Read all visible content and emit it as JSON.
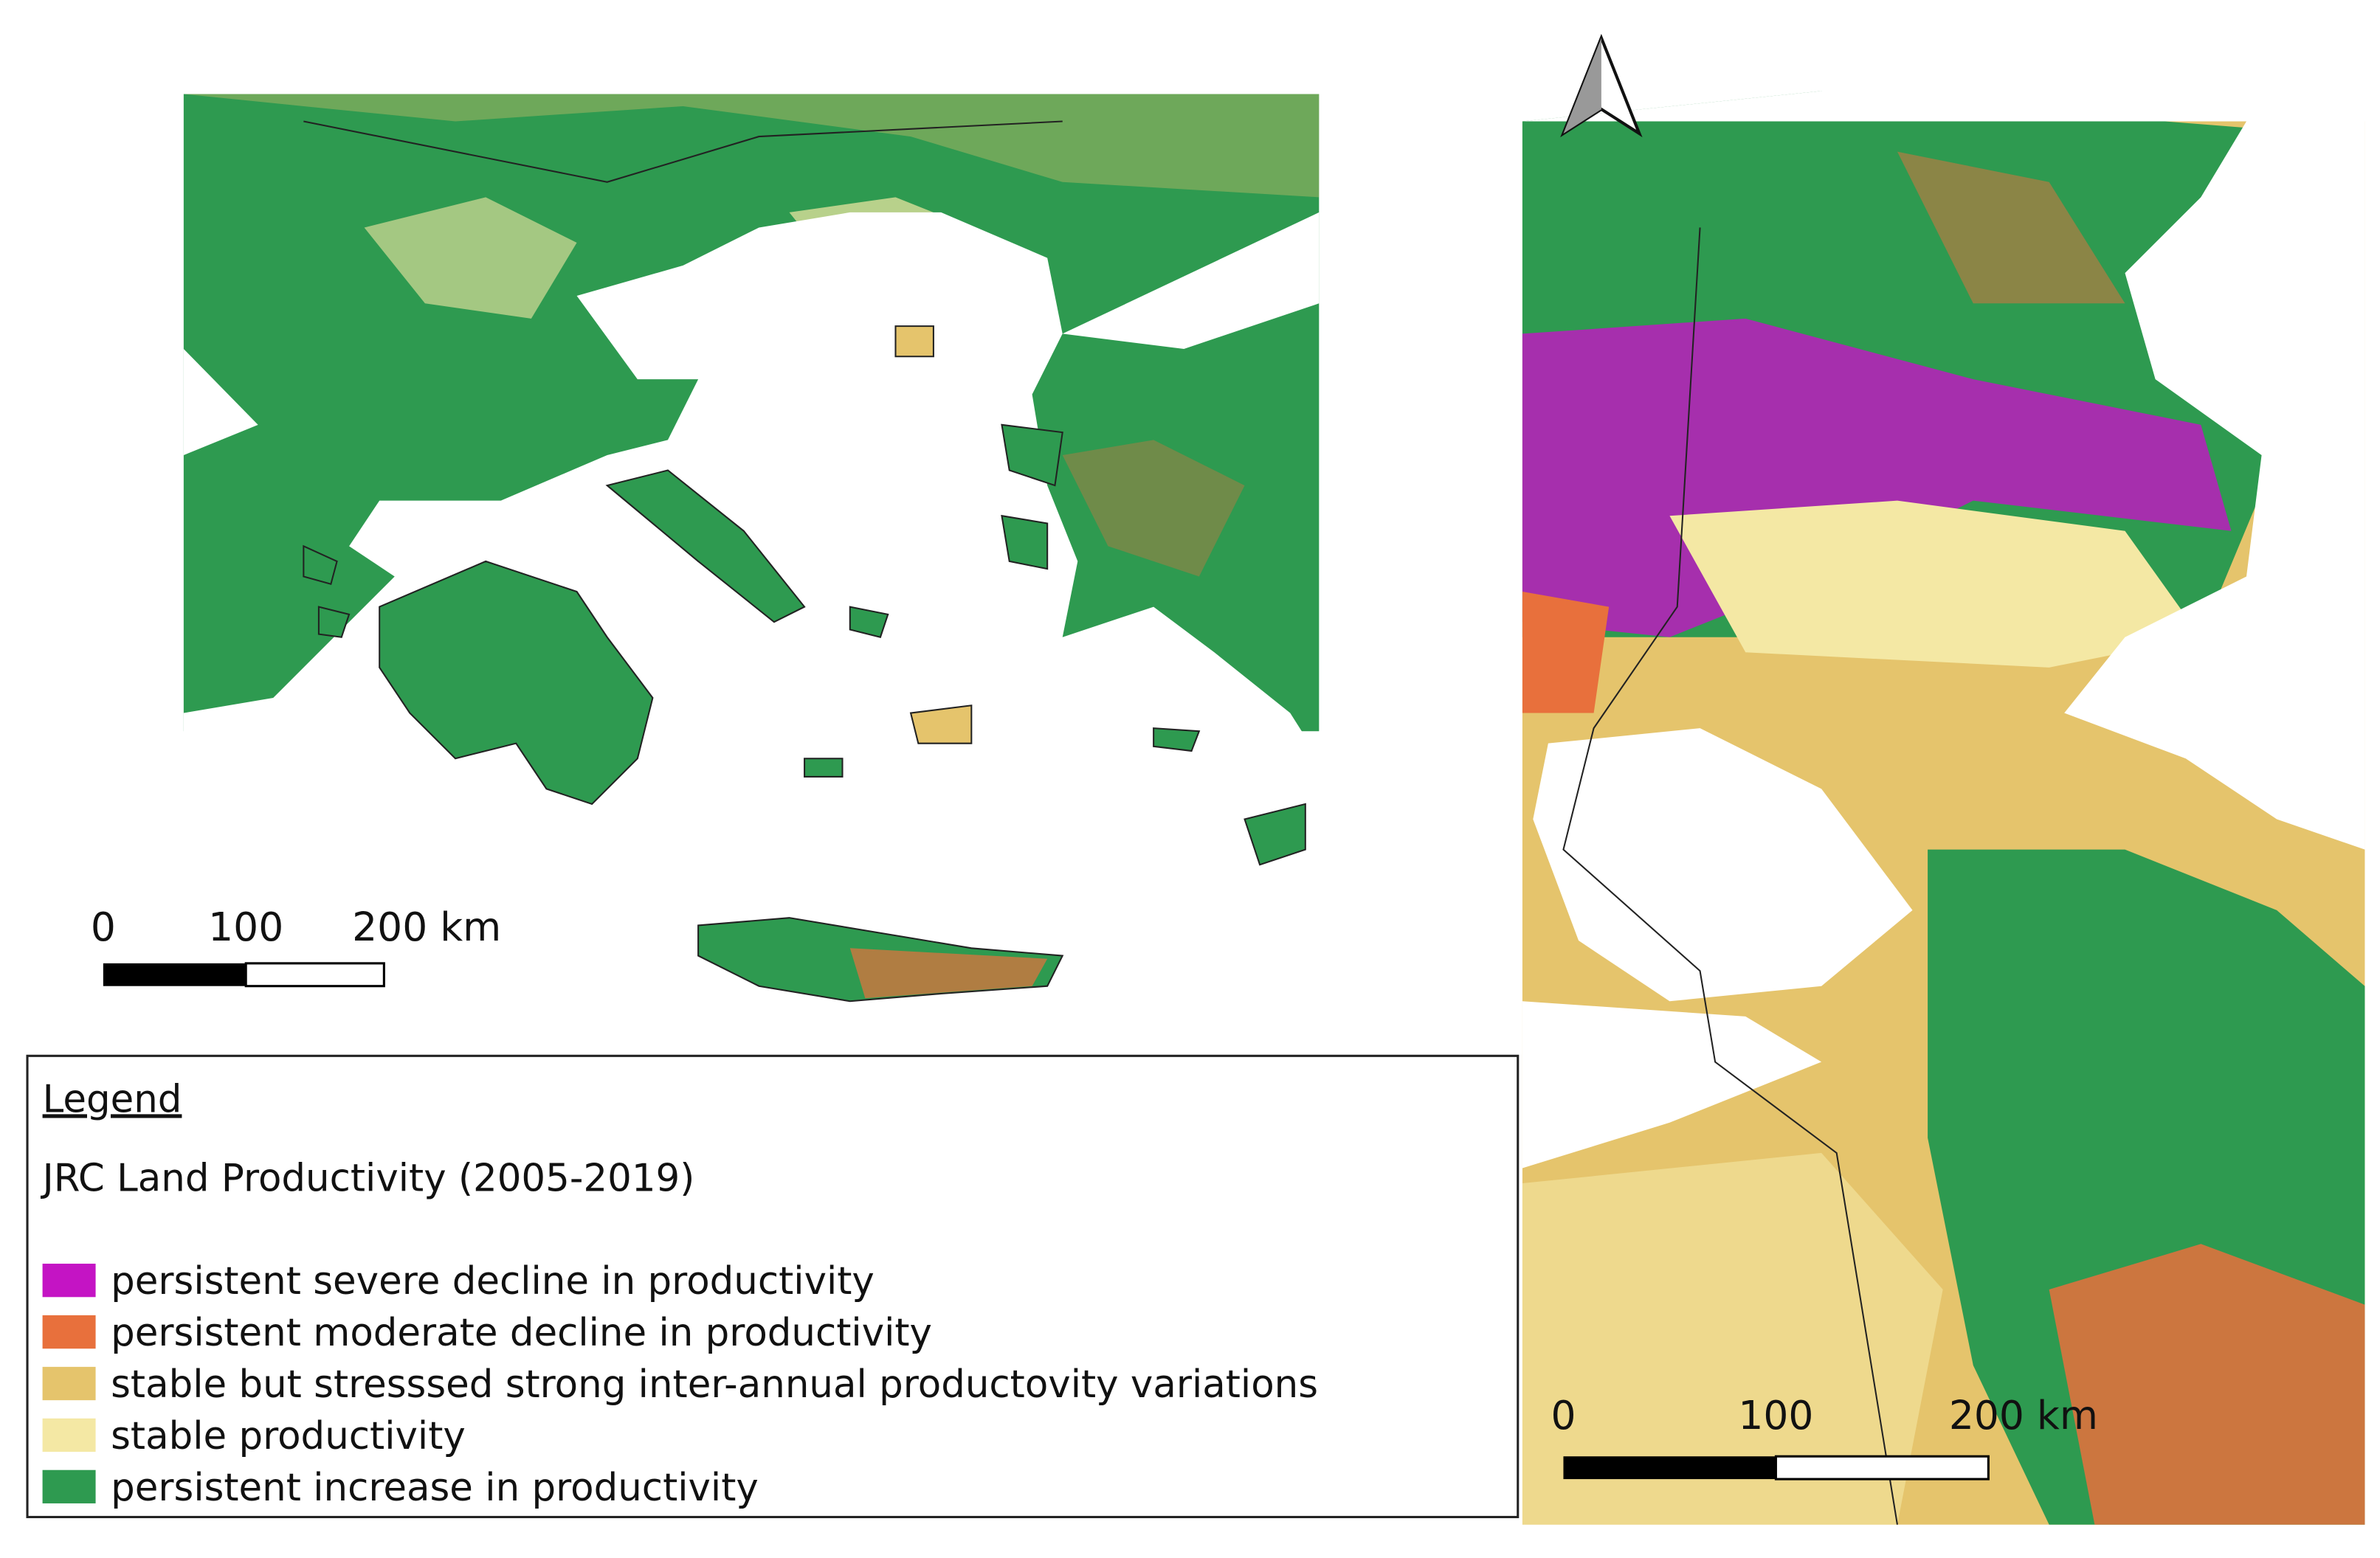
{
  "legend": {
    "heading": "Legend",
    "title": "JRC Land Productivity (2005-2019)",
    "items": [
      {
        "label": "persistent severe decline in productivity",
        "color": "#c414c4"
      },
      {
        "label": "persistent moderate decline in productivity",
        "color": "#e8703c"
      },
      {
        "label": "stable but stresssed strong inter-annual productovity variations",
        "color": "#e5c46c"
      },
      {
        "label": "stable productivity",
        "color": "#f4e8a4"
      },
      {
        "label": "persistent increase in productivity",
        "color": "#2e9a50"
      }
    ]
  },
  "scale_bar_left": {
    "labels": [
      "0",
      "100",
      "200 km"
    ]
  },
  "scale_bar_right": {
    "labels": [
      "0",
      "100",
      "200 km"
    ]
  }
}
